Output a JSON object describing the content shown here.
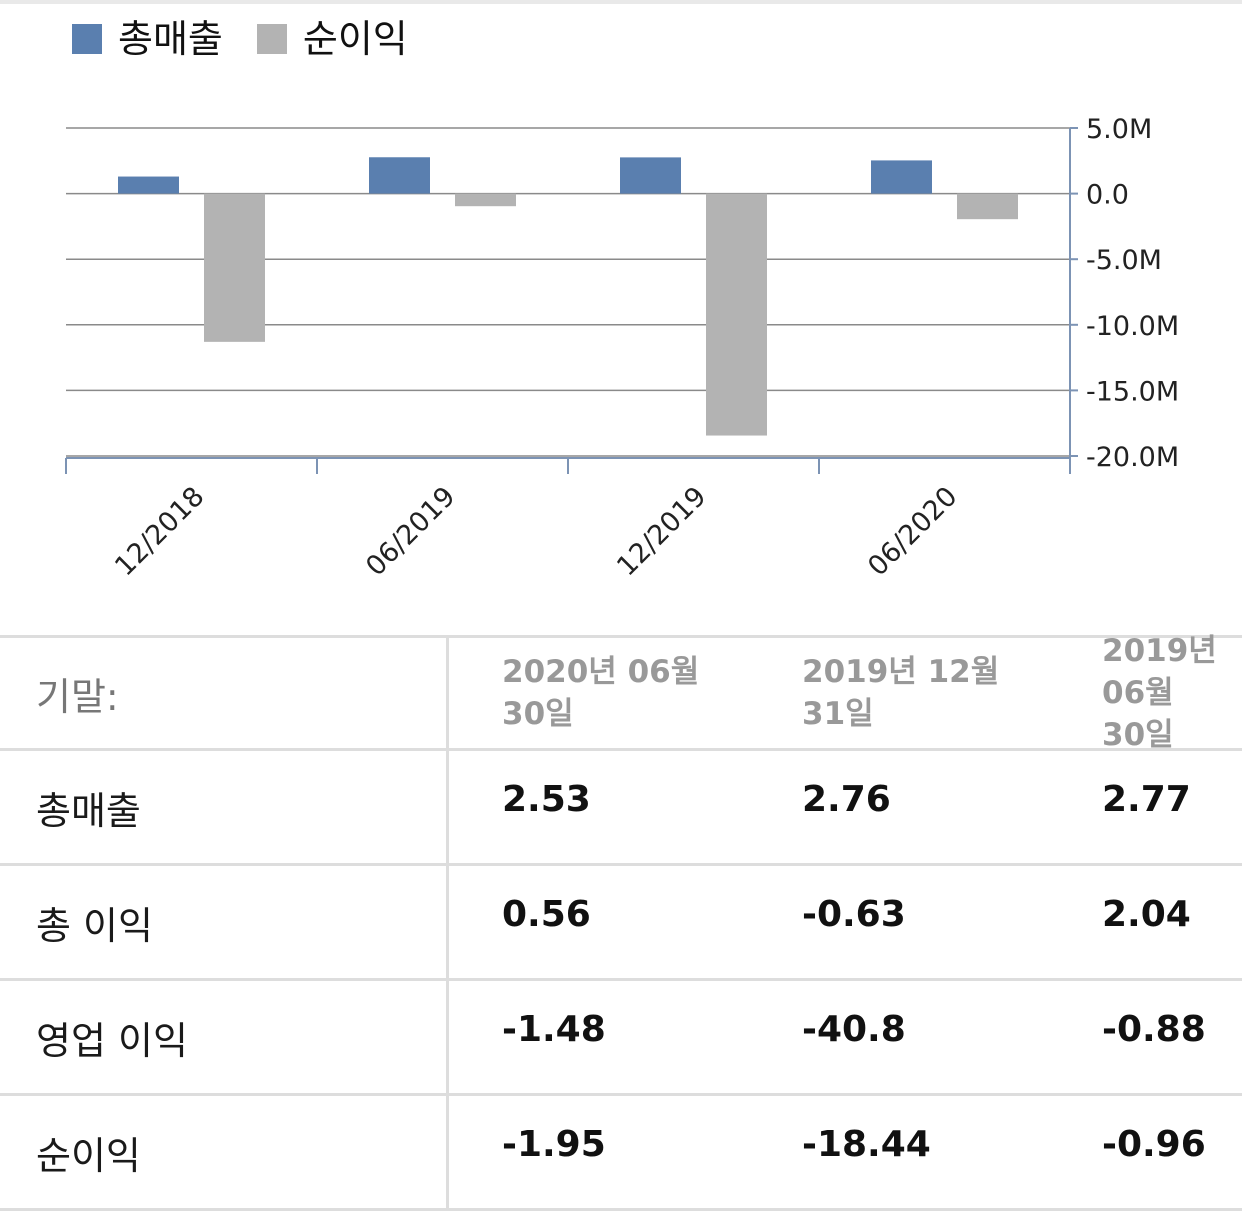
{
  "chart_data": {
    "type": "bar",
    "categories": [
      "12/2018",
      "06/2019",
      "12/2019",
      "06/2020"
    ],
    "series": [
      {
        "name": "총매출",
        "color": "#5a7faf",
        "values": [
          1.3,
          2.77,
          2.76,
          2.53
        ]
      },
      {
        "name": "순이익",
        "color": "#b3b3b3",
        "values": [
          -11.3,
          -0.96,
          -18.44,
          -1.95
        ]
      }
    ],
    "yticks": [
      "5.0M",
      "0.0",
      "-5.0M",
      "-10.0M",
      "-15.0M",
      "-20.0M"
    ],
    "ytick_values": [
      5,
      0,
      -5,
      -10,
      -15,
      -20
    ],
    "ylim": [
      -20,
      5
    ],
    "y_axis_side": "right",
    "grid": true,
    "legend_position": "top-left"
  },
  "table": {
    "period_label": "기말:",
    "columns": [
      "2020년 06월\n30일",
      "2019년 12월\n31일",
      "2019년 06월\n30일"
    ],
    "rows": [
      {
        "label": "총매출",
        "values": [
          "2.53",
          "2.76",
          "2.77"
        ]
      },
      {
        "label": "총 이익",
        "values": [
          "0.56",
          "-0.63",
          "2.04"
        ]
      },
      {
        "label": "영업 이익",
        "values": [
          "-1.48",
          "-40.8",
          "-0.88"
        ]
      },
      {
        "label": "순이익",
        "values": [
          "-1.95",
          "-18.44",
          "-0.96"
        ]
      }
    ]
  }
}
